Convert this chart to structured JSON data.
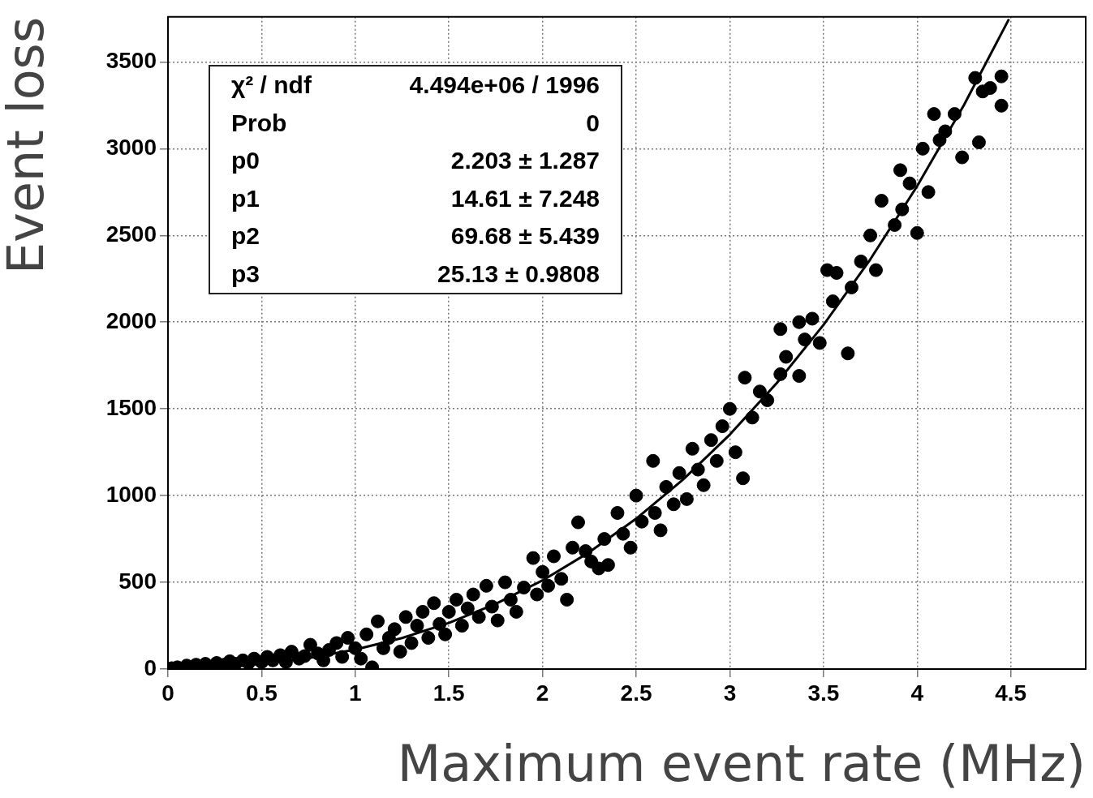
{
  "chart_data": {
    "type": "scatter",
    "xlabel": "Maximum event rate (MHz)",
    "ylabel": "Event loss",
    "xlim": [
      0,
      4.9
    ],
    "xticks": [
      0,
      0.5,
      1,
      1.5,
      2,
      2.5,
      3,
      3.5,
      4,
      4.5
    ],
    "ylim": [
      0,
      3760
    ],
    "yticks": [
      0,
      500,
      1000,
      1500,
      2000,
      2500,
      3000,
      3500
    ],
    "grid": true,
    "marker": "circle",
    "line_style": "solid",
    "annotations": [
      "χ² / ndf",
      "4.494e+06 / 1996",
      "Prob",
      "0",
      "p0",
      "2.203 ± 1.287",
      "p1",
      "14.61 ± 7.248",
      "p2",
      "69.68 ± 5.439",
      "p3",
      "25.13 ± 0.9808"
    ],
    "series": [
      {
        "color": "#000000",
        "x": [
          0.02,
          0.05,
          0.1,
          0.15,
          0.2,
          0.26,
          0.3,
          0.33,
          0.36,
          0.4,
          0.43,
          0.46,
          0.5,
          0.53,
          0.56,
          0.6,
          0.63,
          0.66,
          0.7,
          0.73,
          0.76,
          0.8,
          0.83,
          0.86,
          0.9,
          0.93,
          0.96,
          1.0,
          1.03,
          1.06,
          1.09,
          1.12,
          1.15,
          1.18,
          1.21,
          1.24,
          1.27,
          1.3,
          1.33,
          1.36,
          1.39,
          1.42,
          1.45,
          1.48,
          1.5,
          1.54,
          1.57,
          1.6,
          1.63,
          1.66,
          1.7,
          1.73,
          1.76,
          1.8,
          1.83,
          1.86,
          1.9,
          1.95,
          1.97,
          2.0,
          2.03,
          2.06,
          2.1,
          2.13,
          2.16,
          2.19,
          2.23,
          2.26,
          2.3,
          2.33,
          2.35,
          2.4,
          2.43,
          2.47,
          2.5,
          2.53,
          2.59,
          2.6,
          2.63,
          2.66,
          2.7,
          2.73,
          2.77,
          2.8,
          2.83,
          2.86,
          2.9,
          2.93,
          2.96,
          3.0,
          3.03,
          3.07,
          3.08,
          3.12,
          3.16,
          3.2,
          3.27,
          3.27,
          3.3,
          3.37,
          3.37,
          3.4,
          3.44,
          3.48,
          3.52,
          3.55,
          3.57,
          3.63,
          3.65,
          3.7,
          3.75,
          3.78,
          3.81,
          3.91,
          3.88,
          3.92,
          3.96,
          4.0,
          4.03,
          4.06,
          4.09,
          4.12,
          4.15,
          4.2,
          4.24,
          4.31,
          4.33,
          4.35,
          4.39,
          4.45,
          4.45
        ],
        "values": [
          5,
          10,
          20,
          25,
          30,
          35,
          25,
          45,
          30,
          50,
          35,
          60,
          40,
          70,
          50,
          80,
          40,
          100,
          60,
          75,
          140,
          90,
          50,
          110,
          150,
          70,
          180,
          120,
          60,
          200,
          10,
          275,
          120,
          180,
          230,
          100,
          300,
          150,
          250,
          330,
          180,
          380,
          260,
          200,
          330,
          400,
          250,
          350,
          430,
          300,
          480,
          360,
          280,
          500,
          400,
          330,
          470,
          640,
          430,
          560,
          480,
          650,
          520,
          400,
          700,
          846,
          680,
          620,
          580,
          750,
          600,
          900,
          780,
          700,
          1000,
          850,
          1200,
          900,
          800,
          1050,
          950,
          1130,
          980,
          1270,
          1150,
          1060,
          1320,
          1200,
          1400,
          1500,
          1250,
          1100,
          1680,
          1450,
          1600,
          1550,
          1960,
          1700,
          1800,
          1690,
          2000,
          1900,
          2020,
          1880,
          2300,
          2120,
          2284,
          1820,
          2200,
          2350,
          2500,
          2300,
          2700,
          2876,
          2560,
          2650,
          2800,
          2514,
          3000,
          2750,
          3200,
          3050,
          3100,
          3200,
          2950,
          3408,
          3037,
          3330,
          3350,
          3417,
          3248
        ]
      },
      {
        "type": "line",
        "marker": "none",
        "color": "#000000",
        "x": [
          0,
          0.25,
          0.5,
          0.75,
          1,
          1.25,
          1.5,
          1.75,
          2,
          2.25,
          2.5,
          2.75,
          3,
          3.25,
          3.5,
          3.75,
          4,
          4.25,
          4.49
        ],
        "values": [
          2,
          11,
          30,
          63,
          112,
          179,
          266,
          376,
          511,
          674,
          867,
          1092,
          1352,
          1648,
          1984,
          2362,
          2784,
          3252,
          3747
        ]
      }
    ]
  }
}
